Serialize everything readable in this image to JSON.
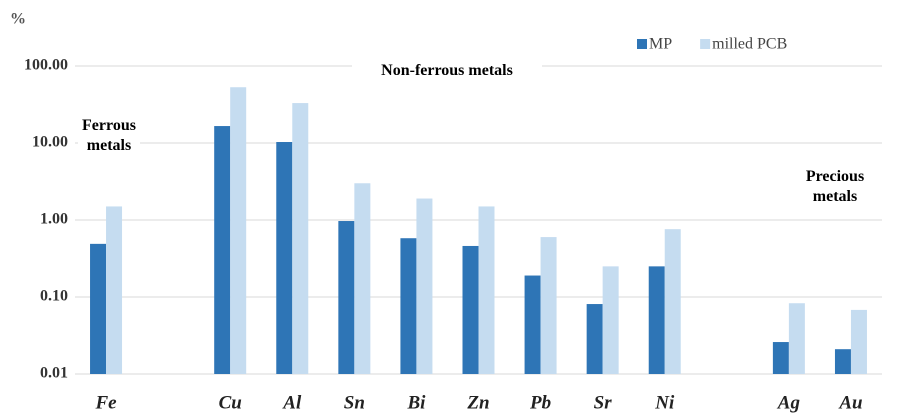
{
  "chart_data": {
    "type": "bar",
    "y_axis_label": "%",
    "log_scale": true,
    "grid": true,
    "legend_position": "top-right",
    "categories": [
      "Fe",
      null,
      "Cu",
      "Al",
      "Sn",
      "Bi",
      "Zn",
      "Pb",
      "Sr",
      "Ni",
      null,
      "Ag",
      "Au"
    ],
    "series": [
      {
        "name": "MP",
        "color": "#2e75b6",
        "values": [
          0.49,
          null,
          16.6,
          10.3,
          0.97,
          0.58,
          0.46,
          0.19,
          0.081,
          0.25,
          null,
          0.026,
          0.021
        ]
      },
      {
        "name": "milled PCB",
        "color": "#c5dcf0",
        "values": [
          1.5,
          null,
          53,
          33,
          3.0,
          1.9,
          1.5,
          0.6,
          0.25,
          0.76,
          null,
          0.083,
          0.068
        ]
      }
    ],
    "ylim": [
      0.01,
      100
    ],
    "yticks": [
      {
        "value": 0.01,
        "label": "0.01"
      },
      {
        "value": 0.1,
        "label": "0.10"
      },
      {
        "value": 1,
        "label": "1.00"
      },
      {
        "value": 10,
        "label": "10.00"
      },
      {
        "value": 100,
        "label": "100.00"
      }
    ],
    "annotations": [
      "Ferrous metals",
      "Non-ferrous metals",
      "Precious metals"
    ]
  }
}
